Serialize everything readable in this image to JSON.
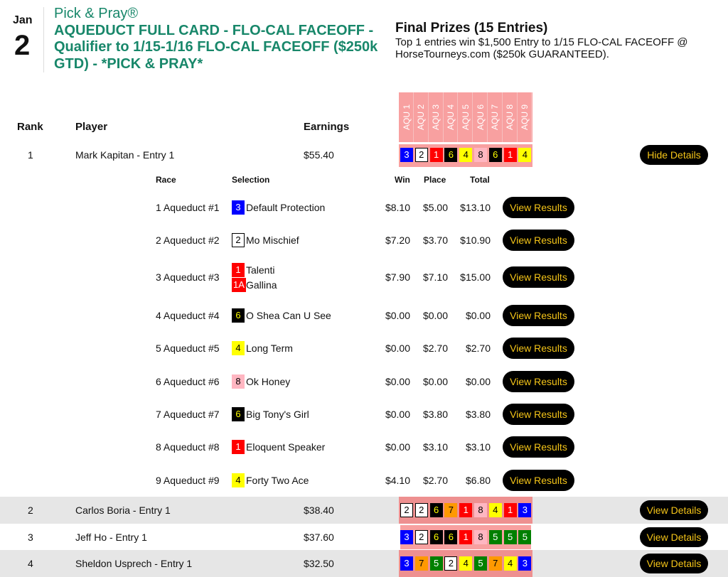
{
  "header": {
    "month": "Jan",
    "day": "2",
    "brand": "Pick & Pray®",
    "title": "AQUEDUCT FULL CARD - FLO-CAL FACEOFF - Qualifier to 1/15-1/16 FLO-CAL FACEOFF ($250k GTD) - *PICK & PRAY*"
  },
  "prizes": {
    "heading": "Final Prizes (15 Entries)",
    "description": "Top 1 entries win $1,500 Entry to 1/15 FLO-CAL FACEOFF @ HorseTourneys.com ($250k GUARANTEED)."
  },
  "columns": {
    "rank": "Rank",
    "player": "Player",
    "earnings": "Earnings"
  },
  "races": [
    "AQU 1",
    "AQU 2",
    "AQU 3",
    "AQU 4",
    "AQU 5",
    "AQU 6",
    "AQU 7",
    "AQU 8",
    "AQU 9"
  ],
  "chip_colors": {
    "1": [
      "#ff0000",
      "#ffffff"
    ],
    "1A": [
      "#ff0000",
      "#ffffff"
    ],
    "2": [
      "#ffffff",
      "#000000"
    ],
    "3": [
      "#0000ff",
      "#ffffff"
    ],
    "4": [
      "#ffff00",
      "#000000"
    ],
    "5": [
      "#008000",
      "#ffffff"
    ],
    "6": [
      "#000000",
      "#ffff00"
    ],
    "7": [
      "#ff9900",
      "#000000"
    ],
    "8": [
      "#ffb6c1",
      "#000000"
    ]
  },
  "detail_columns": {
    "race": "Race",
    "selection": "Selection",
    "win": "Win",
    "place": "Place",
    "total": "Total"
  },
  "entries": [
    {
      "rank": "1",
      "player": "Mark Kapitan - Entry 1",
      "earnings": "$55.40",
      "picks": [
        "3",
        "2",
        "1",
        "6",
        "4",
        "8",
        "6",
        "1",
        "4"
      ],
      "button": "Hide Details"
    },
    {
      "rank": "2",
      "player": "Carlos Boria - Entry 1",
      "earnings": "$38.40",
      "picks": [
        "2",
        "2",
        "6",
        "7",
        "1",
        "8",
        "4",
        "1",
        "3"
      ],
      "button": "View Details"
    },
    {
      "rank": "3",
      "player": "Jeff Ho - Entry 1",
      "earnings": "$37.60",
      "picks": [
        "3",
        "2",
        "6",
        "6",
        "1",
        "8",
        "5",
        "5",
        "5"
      ],
      "button": "View Details"
    },
    {
      "rank": "4",
      "player": "Sheldon Usprech - Entry 1",
      "earnings": "$32.50",
      "picks": [
        "3",
        "7",
        "5",
        "2",
        "4",
        "5",
        "7",
        "4",
        "3"
      ],
      "button": "View Details"
    }
  ],
  "details": [
    {
      "race": "1 Aqueduct #1",
      "selections": [
        {
          "num": "3",
          "horse": "Default Protection"
        }
      ],
      "win": "$8.10",
      "place": "$5.00",
      "total": "$13.10",
      "button": "View Results"
    },
    {
      "race": "2 Aqueduct #2",
      "selections": [
        {
          "num": "2",
          "horse": "Mo Mischief"
        }
      ],
      "win": "$7.20",
      "place": "$3.70",
      "total": "$10.90",
      "button": "View Results"
    },
    {
      "race": "3 Aqueduct #3",
      "selections": [
        {
          "num": "1",
          "horse": "Talenti"
        },
        {
          "num": "1A",
          "horse": "Gallina"
        }
      ],
      "win": "$7.90",
      "place": "$7.10",
      "total": "$15.00",
      "button": "View Results"
    },
    {
      "race": "4 Aqueduct #4",
      "selections": [
        {
          "num": "6",
          "horse": "O Shea Can U See"
        }
      ],
      "win": "$0.00",
      "place": "$0.00",
      "total": "$0.00",
      "button": "View Results"
    },
    {
      "race": "5 Aqueduct #5",
      "selections": [
        {
          "num": "4",
          "horse": "Long Term"
        }
      ],
      "win": "$0.00",
      "place": "$2.70",
      "total": "$2.70",
      "button": "View Results"
    },
    {
      "race": "6 Aqueduct #6",
      "selections": [
        {
          "num": "8",
          "horse": "Ok Honey"
        }
      ],
      "win": "$0.00",
      "place": "$0.00",
      "total": "$0.00",
      "button": "View Results"
    },
    {
      "race": "7 Aqueduct #7",
      "selections": [
        {
          "num": "6",
          "horse": "Big Tony's Girl"
        }
      ],
      "win": "$0.00",
      "place": "$3.80",
      "total": "$3.80",
      "button": "View Results"
    },
    {
      "race": "8 Aqueduct #8",
      "selections": [
        {
          "num": "1",
          "horse": "Eloquent Speaker"
        }
      ],
      "win": "$0.00",
      "place": "$3.10",
      "total": "$3.10",
      "button": "View Results"
    },
    {
      "race": "9 Aqueduct #9",
      "selections": [
        {
          "num": "4",
          "horse": "Forty Two Ace"
        }
      ],
      "win": "$4.10",
      "place": "$2.70",
      "total": "$6.80",
      "button": "View Results"
    }
  ]
}
